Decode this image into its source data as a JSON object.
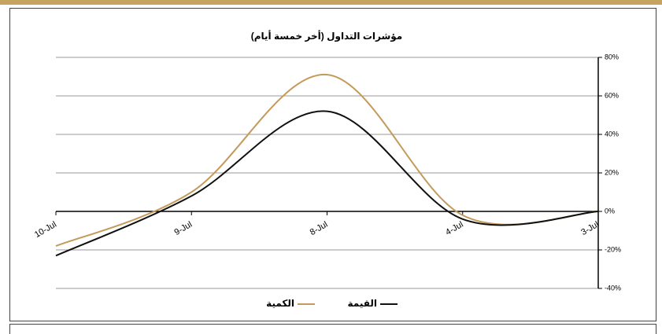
{
  "chart_data": {
    "type": "line",
    "title": "مؤشرات التداول (أخر خمسة أيام)",
    "categories": [
      "10-Jul",
      "9-Jul",
      "8-Jul",
      "4-Jul",
      "3-Jul"
    ],
    "series": [
      {
        "name": "الكمية",
        "color": "#c49a5c",
        "values": [
          -18,
          10,
          71,
          -2,
          0
        ]
      },
      {
        "name": "القيمة",
        "color": "#111111",
        "values": [
          -23,
          8,
          52,
          -4,
          0
        ]
      }
    ],
    "ylim": [
      -40,
      80
    ],
    "yticks": [
      {
        "value": -40,
        "label": "-40%"
      },
      {
        "value": -20,
        "label": "-20%"
      },
      {
        "value": 0,
        "label": "0%"
      },
      {
        "value": 20,
        "label": "20%"
      },
      {
        "value": 40,
        "label": "40%"
      },
      {
        "value": 60,
        "label": "60%"
      },
      {
        "value": 80,
        "label": "80%"
      }
    ],
    "grid": true,
    "smooth": true,
    "legend": "bottom"
  }
}
